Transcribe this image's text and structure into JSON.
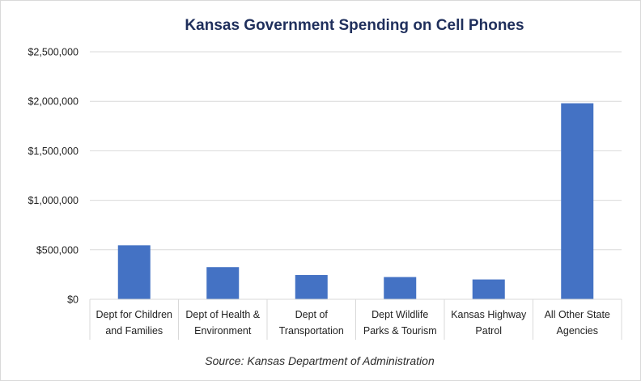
{
  "chart_data": {
    "type": "bar",
    "title": "Kansas Government Spending on Cell Phones",
    "source": "Source: Kansas Department of Administration",
    "categories": [
      [
        "Dept for Children",
        "and Families"
      ],
      [
        "Dept of Health &",
        "Environment"
      ],
      [
        "Dept of",
        "Transportation"
      ],
      [
        "Dept Wildlife",
        "Parks & Tourism"
      ],
      [
        "Kansas Highway",
        "Patrol"
      ],
      [
        "All Other State",
        "Agencies"
      ]
    ],
    "values": [
      545000,
      325000,
      245000,
      225000,
      200000,
      1980000
    ],
    "ylim": [
      0,
      2500000
    ],
    "yticks": [
      0,
      500000,
      1000000,
      1500000,
      2000000,
      2500000
    ],
    "ytick_labels": [
      "$0",
      "$500,000",
      "$1,000,000",
      "$1,500,000",
      "$2,000,000",
      "$2,500,000"
    ],
    "grid": true,
    "bar_color": "#4472c4",
    "grid_color": "#d9d9d9",
    "title_color": "#1f2f5c"
  }
}
